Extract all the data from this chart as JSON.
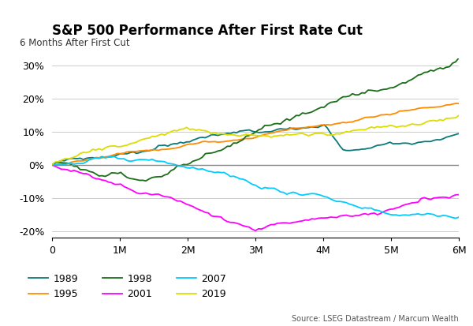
{
  "title": "S&P 500 Performance After First Rate Cut",
  "subtitle": "6 Months After First Cut",
  "source": "Source: LSEG Datastream / Marcum Wealth",
  "xlim": [
    0,
    130
  ],
  "ylim": [
    -0.22,
    0.32
  ],
  "xticks": [
    0,
    21.67,
    43.33,
    65,
    86.67,
    108.33,
    130
  ],
  "xtick_labels": [
    "0",
    "1M",
    "2M",
    "3M",
    "4M",
    "5M",
    "6M"
  ],
  "yticks": [
    -0.2,
    -0.1,
    0.0,
    0.1,
    0.2,
    0.3
  ],
  "ytick_labels": [
    "-20%",
    "-10%",
    "0%",
    "10%",
    "20%",
    "30%"
  ],
  "colors": {
    "1989": "#0a7a7a",
    "1995": "#FF8C00",
    "1998": "#1a6e1a",
    "2001": "#FF00FF",
    "2007": "#00CCFF",
    "2019": "#DDDD00"
  },
  "lw": 1.3,
  "background_color": "#ffffff",
  "grid_color": "#cccccc",
  "zero_line_color": "#888888"
}
